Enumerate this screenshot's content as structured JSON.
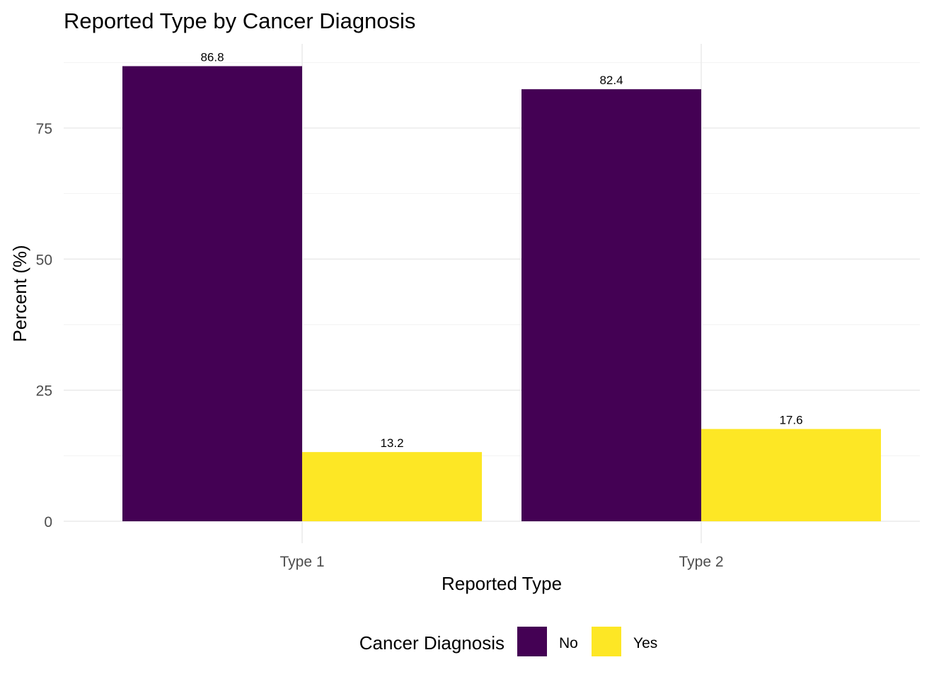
{
  "chart_data": {
    "type": "bar",
    "title": "Reported Type by Cancer Diagnosis",
    "xlabel": "Reported Type",
    "ylabel": "Percent (%)",
    "categories": [
      "Type 1",
      "Type 2"
    ],
    "series": [
      {
        "name": "No",
        "color": "#440154",
        "values": [
          86.8,
          82.4
        ],
        "labels": [
          "86.8",
          "82.4"
        ]
      },
      {
        "name": "Yes",
        "color": "#FDE725",
        "values": [
          13.2,
          17.6
        ],
        "labels": [
          "13.2",
          "17.6"
        ]
      }
    ],
    "ylim": [
      0,
      90
    ],
    "yticks": [
      0,
      25,
      50,
      75
    ],
    "ytick_labels": [
      "0",
      "25",
      "50",
      "75"
    ],
    "grid": true,
    "legend": {
      "title": "Cancer Diagnosis",
      "position": "bottom"
    }
  }
}
